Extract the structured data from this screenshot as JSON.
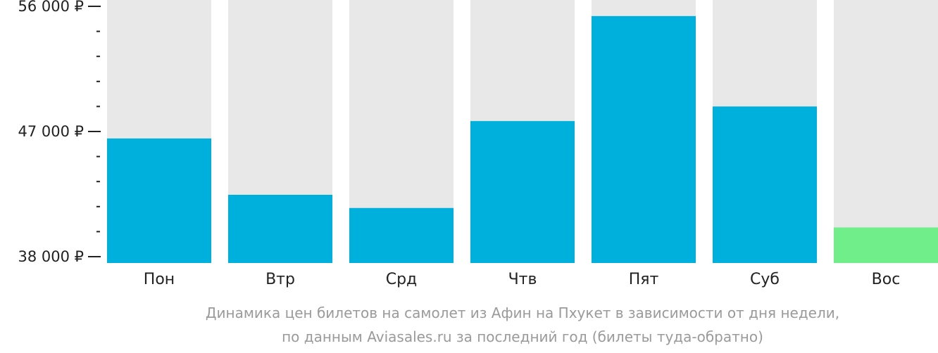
{
  "chart_data": {
    "type": "bar",
    "categories": [
      "Пон",
      "Втр",
      "Срд",
      "Чтв",
      "Пят",
      "Суб",
      "Вос"
    ],
    "values": [
      46500,
      42450,
      41500,
      47750,
      55300,
      48800,
      40100
    ],
    "ylim": [
      38000,
      56000
    ],
    "y_major_ticks": [
      {
        "value": 56000,
        "label": "56 000 ₽"
      },
      {
        "value": 47000,
        "label": "47 000 ₽"
      },
      {
        "value": 38000,
        "label": "38 000 ₽"
      }
    ],
    "y_minor_tick_step": 1800,
    "colors": {
      "bar": "#00b0dc",
      "bar_min": "#6fee8a",
      "track": "#e8e8e8"
    },
    "highlighted_category": "Вос",
    "caption_line1": "Динамика цен билетов на самолет из Афин на Пхукет в зависимости от дня недели,",
    "caption_line2": "по данным Aviasales.ru за последний год (билеты туда-обратно)"
  }
}
